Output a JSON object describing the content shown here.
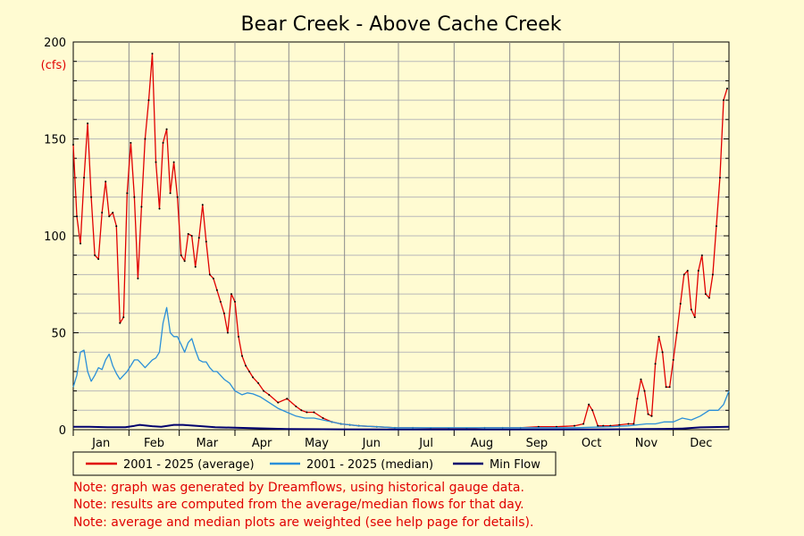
{
  "chart_data": {
    "type": "line",
    "title": "Bear Creek - Above Cache Creek",
    "ylabel": "(cfs)",
    "xlabel": "",
    "ylim": [
      0,
      200
    ],
    "xlim": [
      1,
      366
    ],
    "y_ticks": [
      0,
      50,
      100,
      150,
      200
    ],
    "month_labels": [
      "Jan",
      "Feb",
      "Mar",
      "Apr",
      "May",
      "Jun",
      "Jul",
      "Aug",
      "Sep",
      "Oct",
      "Nov",
      "Dec"
    ],
    "month_starts": [
      1,
      32,
      60,
      91,
      121,
      152,
      182,
      213,
      244,
      274,
      305,
      335
    ],
    "grid": true,
    "legend_position": "bottom-left",
    "series": [
      {
        "name": "2001 - 2025 (average)",
        "color": "#e00000",
        "x": [
          1,
          3,
          5,
          7,
          9,
          11,
          13,
          15,
          17,
          19,
          21,
          23,
          25,
          27,
          29,
          31,
          33,
          35,
          37,
          39,
          41,
          43,
          45,
          47,
          49,
          51,
          53,
          55,
          57,
          59,
          61,
          63,
          65,
          67,
          69,
          71,
          73,
          75,
          77,
          79,
          81,
          83,
          85,
          87,
          89,
          91,
          93,
          95,
          97,
          99,
          101,
          104,
          107,
          110,
          115,
          120,
          125,
          128,
          131,
          135,
          140,
          145,
          150,
          155,
          160,
          170,
          180,
          190,
          200,
          210,
          220,
          230,
          240,
          250,
          260,
          270,
          280,
          285,
          288,
          290,
          293,
          296,
          300,
          305,
          310,
          313,
          315,
          317,
          319,
          321,
          323,
          325,
          327,
          329,
          331,
          333,
          335,
          337,
          339,
          341,
          343,
          345,
          347,
          349,
          351,
          353,
          355,
          357,
          359,
          361,
          363,
          365
        ],
        "values": [
          147,
          110,
          96,
          130,
          158,
          120,
          90,
          88,
          112,
          128,
          110,
          112,
          105,
          55,
          58,
          122,
          148,
          120,
          78,
          115,
          150,
          170,
          194,
          138,
          114,
          148,
          155,
          122,
          138,
          120,
          90,
          87,
          101,
          100,
          84,
          99,
          116,
          97,
          80,
          78,
          72,
          66,
          60,
          50,
          70,
          66,
          48,
          38,
          33,
          30,
          27,
          24,
          20,
          18,
          14,
          16,
          12,
          10,
          9,
          9,
          6,
          4,
          3,
          2.5,
          2,
          1.5,
          1,
          1,
          0.8,
          0.5,
          0.5,
          1,
          1,
          1,
          1.5,
          1.5,
          2,
          3,
          13,
          10,
          2,
          2,
          2,
          2.5,
          3,
          3,
          16,
          26,
          20,
          8,
          7,
          34,
          48,
          40,
          22,
          22,
          36,
          50,
          65,
          80,
          82,
          62,
          58,
          82,
          90,
          70,
          68,
          80,
          105,
          130,
          170,
          176
        ]
      },
      {
        "name": "2001 - 2025 (median)",
        "color": "#2a8fd8",
        "x": [
          1,
          3,
          5,
          7,
          9,
          11,
          13,
          15,
          17,
          19,
          21,
          23,
          25,
          27,
          29,
          31,
          33,
          35,
          37,
          39,
          41,
          43,
          45,
          47,
          49,
          51,
          53,
          55,
          57,
          59,
          61,
          63,
          65,
          67,
          69,
          71,
          73,
          75,
          77,
          79,
          81,
          83,
          85,
          88,
          91,
          95,
          98,
          101,
          105,
          110,
          115,
          120,
          125,
          130,
          135,
          140,
          150,
          160,
          170,
          180,
          200,
          220,
          240,
          260,
          280,
          300,
          310,
          320,
          325,
          330,
          335,
          340,
          345,
          350,
          355,
          360,
          363,
          366
        ],
        "values": [
          22,
          28,
          40,
          41,
          30,
          25,
          28,
          32,
          31,
          36,
          39,
          33,
          29,
          26,
          28,
          30,
          33,
          36,
          36,
          34,
          32,
          34,
          36,
          37,
          40,
          55,
          63,
          50,
          48,
          48,
          44,
          40,
          45,
          47,
          41,
          36,
          35,
          35,
          32,
          30,
          30,
          28,
          26,
          24,
          20,
          18,
          19,
          18.5,
          17,
          14,
          11,
          9,
          7,
          6,
          6,
          5,
          3,
          2,
          1.5,
          1,
          1,
          1,
          1,
          1,
          1,
          1.5,
          2,
          3,
          3,
          4,
          4,
          6,
          5,
          7,
          10,
          10,
          13,
          20
        ]
      },
      {
        "name": "Min Flow",
        "color": "#00006e",
        "x": [
          1,
          10,
          20,
          30,
          35,
          38,
          45,
          50,
          57,
          62,
          70,
          80,
          100,
          120,
          150,
          180,
          250,
          300,
          320,
          330,
          340,
          350,
          366
        ],
        "values": [
          1.5,
          1.5,
          1.3,
          1.3,
          2,
          2.5,
          1.8,
          1.5,
          2.5,
          2.5,
          2,
          1.3,
          0.8,
          0.3,
          0.2,
          0.1,
          0.1,
          0.2,
          0.3,
          0.4,
          0.6,
          1.2,
          1.5
        ]
      }
    ]
  },
  "notes": [
    "Note: graph was generated by Dreamflows, using historical gauge data.",
    "Note: results are computed from the average/median flows for that day.",
    "Note: average and median plots are weighted (see help page for details)."
  ]
}
